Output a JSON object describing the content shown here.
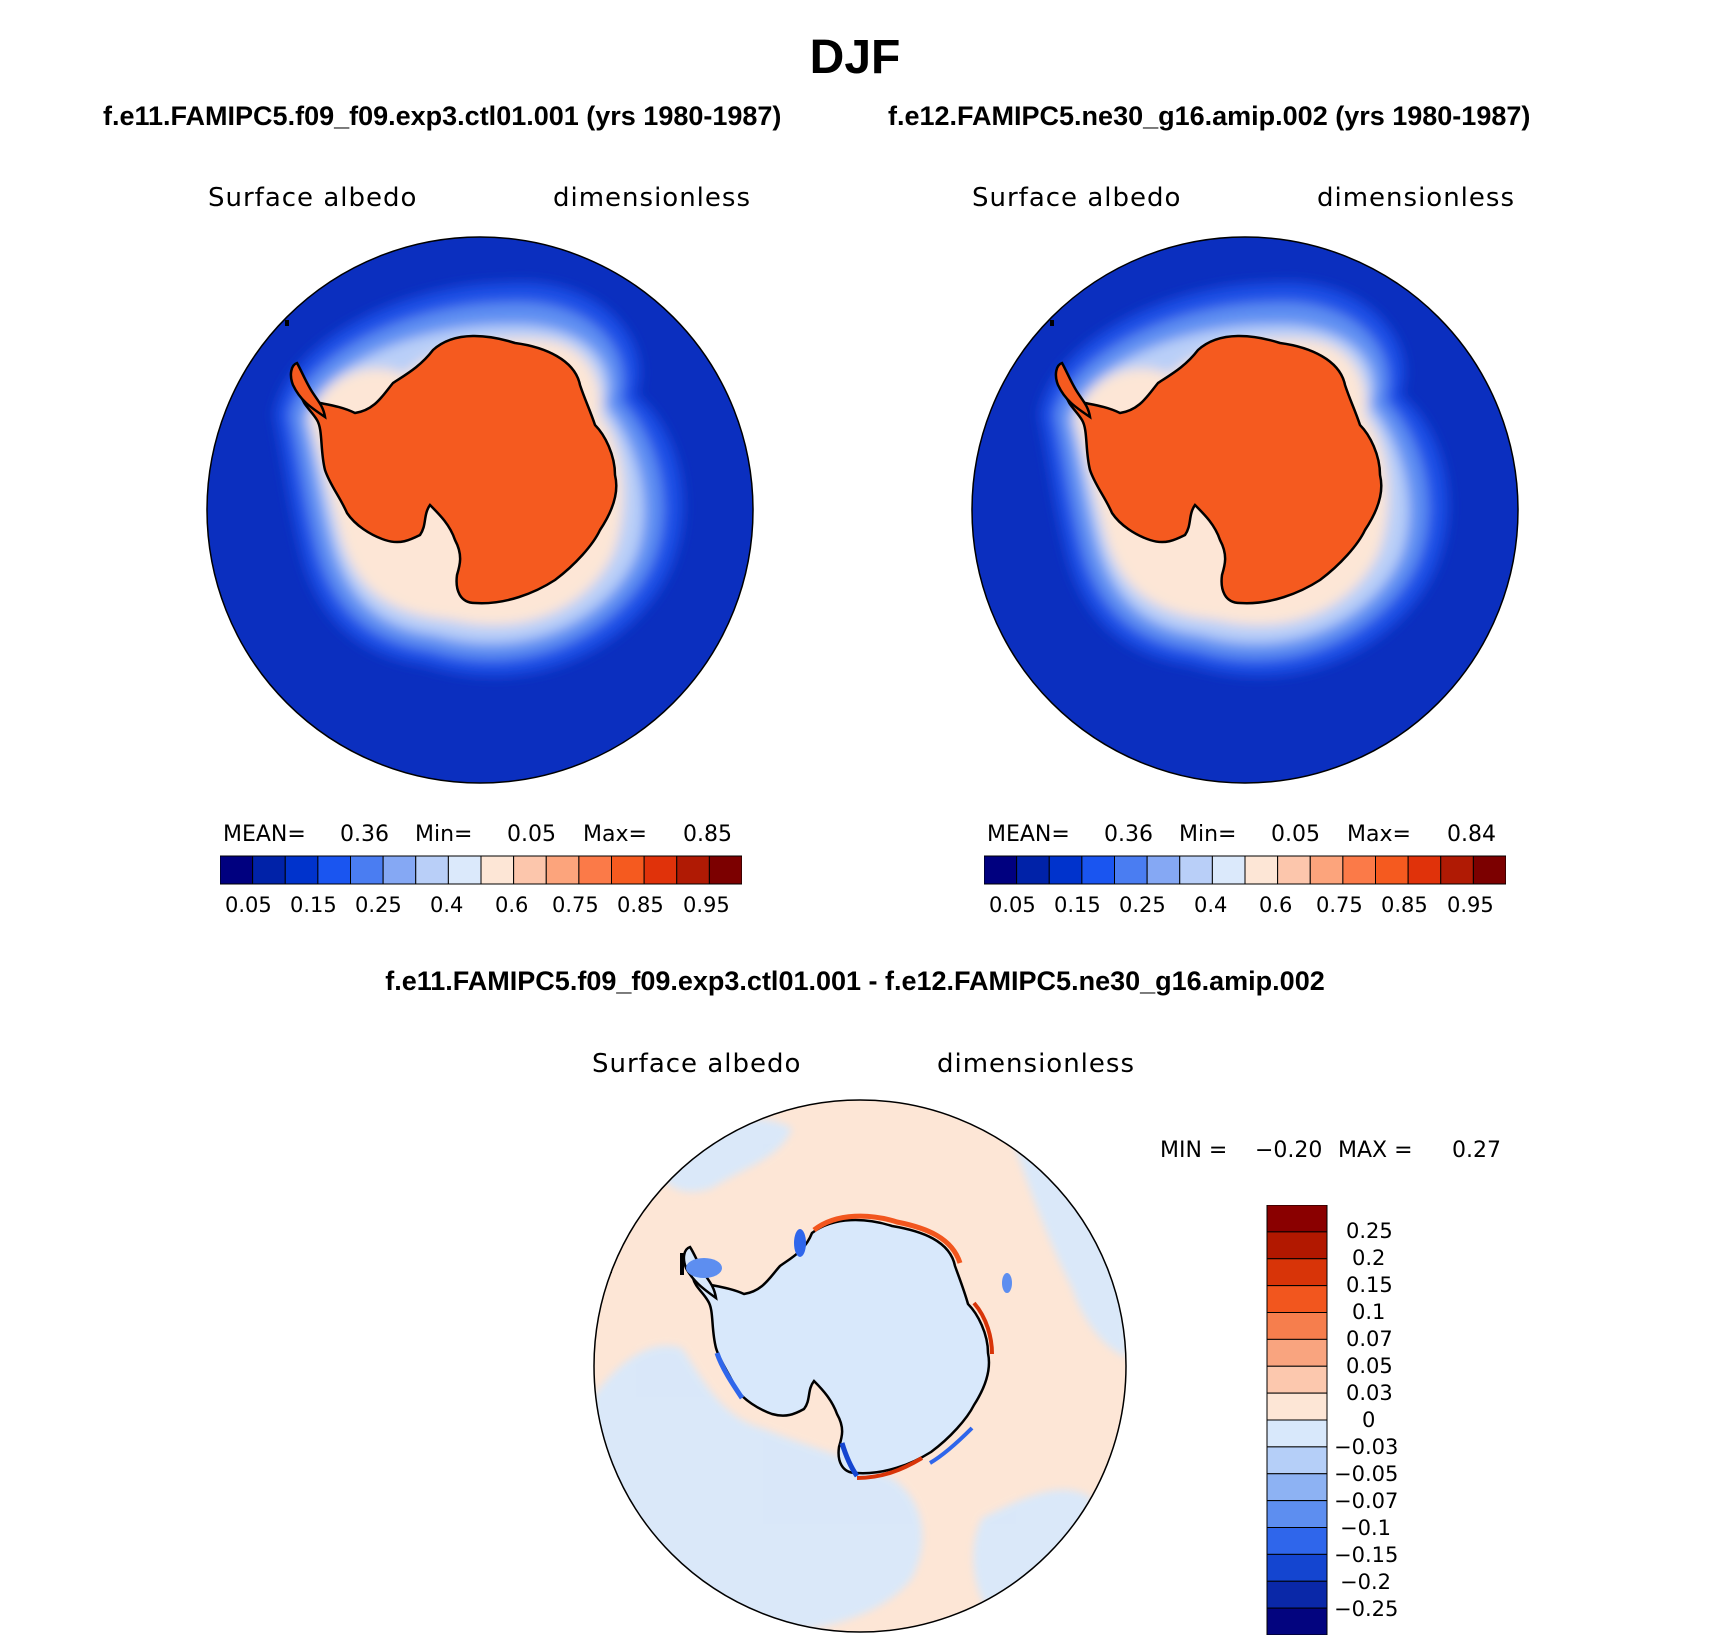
{
  "title": "DJF",
  "panels": [
    {
      "case_title": "f.e11.FAMIPC5.f09_f09.exp3.ctl01.001 (yrs 1980-1987)",
      "variable": "Surface albedo",
      "units": "dimensionless",
      "stats": {
        "mean_label": "MEAN=",
        "mean": "0.36",
        "min_label": "Min=",
        "min": "0.05",
        "max_label": "Max=",
        "max": "0.85"
      },
      "colorbar_labels": [
        "0.05",
        "0.15",
        "0.25",
        "0.4",
        "0.6",
        "0.75",
        "0.85",
        "0.95"
      ]
    },
    {
      "case_title": "f.e12.FAMIPC5.ne30_g16.amip.002 (yrs 1980-1987)",
      "variable": "Surface albedo",
      "units": "dimensionless",
      "stats": {
        "mean_label": "MEAN=",
        "mean": "0.36",
        "min_label": "Min=",
        "min": "0.05",
        "max_label": "Max=",
        "max": "0.84"
      },
      "colorbar_labels": [
        "0.05",
        "0.15",
        "0.25",
        "0.4",
        "0.6",
        "0.75",
        "0.85",
        "0.95"
      ]
    }
  ],
  "diff_panel": {
    "title": "f.e11.FAMIPC5.f09_f09.exp3.ctl01.001 - f.e12.FAMIPC5.ne30_g16.amip.002",
    "variable": "Surface albedo",
    "units": "dimensionless",
    "stats": {
      "min_label": "MIN =",
      "min": "−0.20",
      "max_label": "MAX =",
      "max": "0.27"
    },
    "colorbar_labels": [
      "0.25",
      "0.2",
      "0.15",
      "0.1",
      "0.07",
      "0.05",
      "0.03",
      "0",
      "−0.03",
      "−0.05",
      "−0.07",
      "−0.1",
      "−0.15",
      "−0.2",
      "−0.25"
    ]
  },
  "colors": {
    "abs_palette": [
      "#00007f",
      "#0022a8",
      "#0033cc",
      "#1a55f0",
      "#4a7df2",
      "#85a8f4",
      "#b9cff8",
      "#dbe9fb",
      "#fde6d6",
      "#fcc6ac",
      "#fca47c",
      "#fb7a48",
      "#f55a1f",
      "#e0320a",
      "#b01a04",
      "#7c0000"
    ],
    "diff_palette": [
      "#8a0000",
      "#b21800",
      "#d83408",
      "#f2561e",
      "#f67e4d",
      "#f9a47f",
      "#fcc8ae",
      "#fde6d6",
      "#d8e8fb",
      "#b5cff8",
      "#8db2f3",
      "#5d8ef0",
      "#2f66eb",
      "#1445d0",
      "#0a28a8",
      "#03047f"
    ],
    "ocean": "#0b2fbf",
    "continent": "#f55a1f",
    "coast": "#000000"
  }
}
